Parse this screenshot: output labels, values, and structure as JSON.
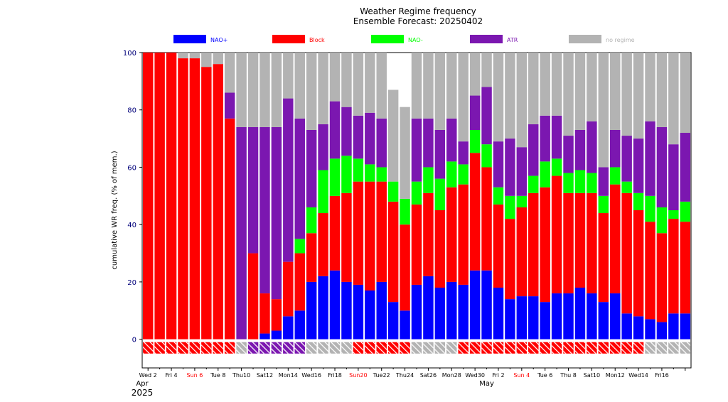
{
  "chart_data": {
    "type": "bar",
    "stacked": true,
    "title": "Weather Regime frequency",
    "subtitle": "Ensemble Forecast: 20250402",
    "ylabel": "cumulative WR freq. (% of mem.)",
    "ylim": [
      -10,
      100
    ],
    "yticks": [
      0,
      20,
      40,
      60,
      80,
      100
    ],
    "legend_position": "top",
    "legend": [
      {
        "name": "NAO+",
        "color": "#0000ff",
        "text_color": "#0000ff"
      },
      {
        "name": "Block",
        "color": "#ff0000",
        "text_color": "#ff0000"
      },
      {
        "name": "NAO-",
        "color": "#00ff00",
        "text_color": "#00ff00"
      },
      {
        "name": "ATR",
        "color": "#7b17b0",
        "text_color": "#7b17b0"
      },
      {
        "name": "no regime",
        "color": "#b3b3b3",
        "text_color": "#b3b3b3"
      }
    ],
    "x_tick_labels": [
      "Wed 2",
      "Fri 4",
      "Sun 6",
      "Tue 8",
      "Thu10",
      "Sat12",
      "Mon14",
      "Wed16",
      "Fri18",
      "Sun20",
      "Tue22",
      "Thu24",
      "Sat26",
      "Mon28",
      "Wed30",
      "Fri 2",
      "Sun 4",
      "Tue 6",
      "Thu 8",
      "Sat10",
      "Mon12",
      "Wed14",
      "Fri16"
    ],
    "x_tick_label_colors": [
      "#000000",
      "#000000",
      "#ff0000",
      "#000000",
      "#000000",
      "#000000",
      "#000000",
      "#000000",
      "#000000",
      "#ff0000",
      "#000000",
      "#000000",
      "#000000",
      "#000000",
      "#000000",
      "#000000",
      "#ff0000",
      "#000000",
      "#000000",
      "#000000",
      "#000000",
      "#000000",
      "#000000"
    ],
    "month_labels": [
      "Apr",
      "May"
    ],
    "year_label": "2025",
    "series": [
      {
        "name": "NAO+",
        "values": [
          0,
          0,
          0,
          0,
          0,
          0,
          0,
          0,
          0,
          0,
          2,
          3,
          8,
          10,
          20,
          22,
          24,
          20,
          19,
          17,
          20,
          13,
          10,
          19,
          22,
          18,
          20,
          19,
          24,
          24,
          18,
          14,
          15,
          15,
          13,
          16,
          16,
          18,
          16,
          13,
          16,
          9,
          8,
          7,
          6,
          9,
          9
        ]
      },
      {
        "name": "Block",
        "values": [
          100,
          100,
          100,
          98,
          98,
          95,
          96,
          77,
          0,
          30,
          14,
          11,
          19,
          20,
          17,
          22,
          26,
          31,
          36,
          38,
          35,
          35,
          30,
          28,
          29,
          27,
          33,
          35,
          41,
          36,
          29,
          28,
          31,
          36,
          40,
          41,
          35,
          33,
          35,
          31,
          38,
          42,
          37,
          34,
          31,
          33,
          32
        ]
      },
      {
        "name": "NAO-",
        "values": [
          0,
          0,
          0,
          0,
          0,
          0,
          0,
          0,
          0,
          0,
          0,
          0,
          0,
          5,
          9,
          15,
          13,
          13,
          8,
          6,
          5,
          7,
          9,
          8,
          9,
          11,
          9,
          7,
          8,
          8,
          6,
          8,
          4,
          6,
          9,
          6,
          7,
          8,
          7,
          6,
          6,
          4,
          6,
          9,
          9,
          3,
          7
        ]
      },
      {
        "name": "ATR",
        "values": [
          0,
          0,
          0,
          0,
          0,
          0,
          0,
          9,
          74,
          44,
          58,
          60,
          57,
          42,
          27,
          16,
          20,
          17,
          15,
          18,
          17,
          0,
          0,
          22,
          17,
          17,
          15,
          8,
          12,
          20,
          16,
          20,
          17,
          18,
          16,
          15,
          13,
          14,
          18,
          10,
          13,
          16,
          19,
          26,
          28,
          23,
          24
        ]
      },
      {
        "name": "no regime",
        "values": [
          0,
          0,
          0,
          2,
          2,
          5,
          4,
          14,
          26,
          26,
          26,
          26,
          16,
          23,
          27,
          25,
          17,
          19,
          22,
          21,
          23,
          32,
          32,
          23,
          23,
          27,
          23,
          31,
          15,
          12,
          31,
          30,
          33,
          25,
          22,
          22,
          29,
          27,
          24,
          40,
          27,
          29,
          30,
          24,
          26,
          32,
          28
        ]
      }
    ],
    "dominant_regime": [
      "Block",
      "Block",
      "Block",
      "Block",
      "Block",
      "Block",
      "Block",
      "Block",
      "no regime",
      "ATR",
      "ATR",
      "ATR",
      "ATR",
      "ATR",
      "no regime",
      "no regime",
      "no regime",
      "no regime",
      "Block",
      "Block",
      "Block",
      "Block",
      "Block",
      "no regime",
      "no regime",
      "no regime",
      "no regime",
      "Block",
      "Block",
      "Block",
      "Block",
      "Block",
      "Block",
      "Block",
      "Block",
      "Block",
      "Block",
      "Block",
      "Block",
      "Block",
      "Block",
      "Block",
      "Block",
      "no regime",
      "no regime",
      "no regime",
      "no regime"
    ]
  }
}
